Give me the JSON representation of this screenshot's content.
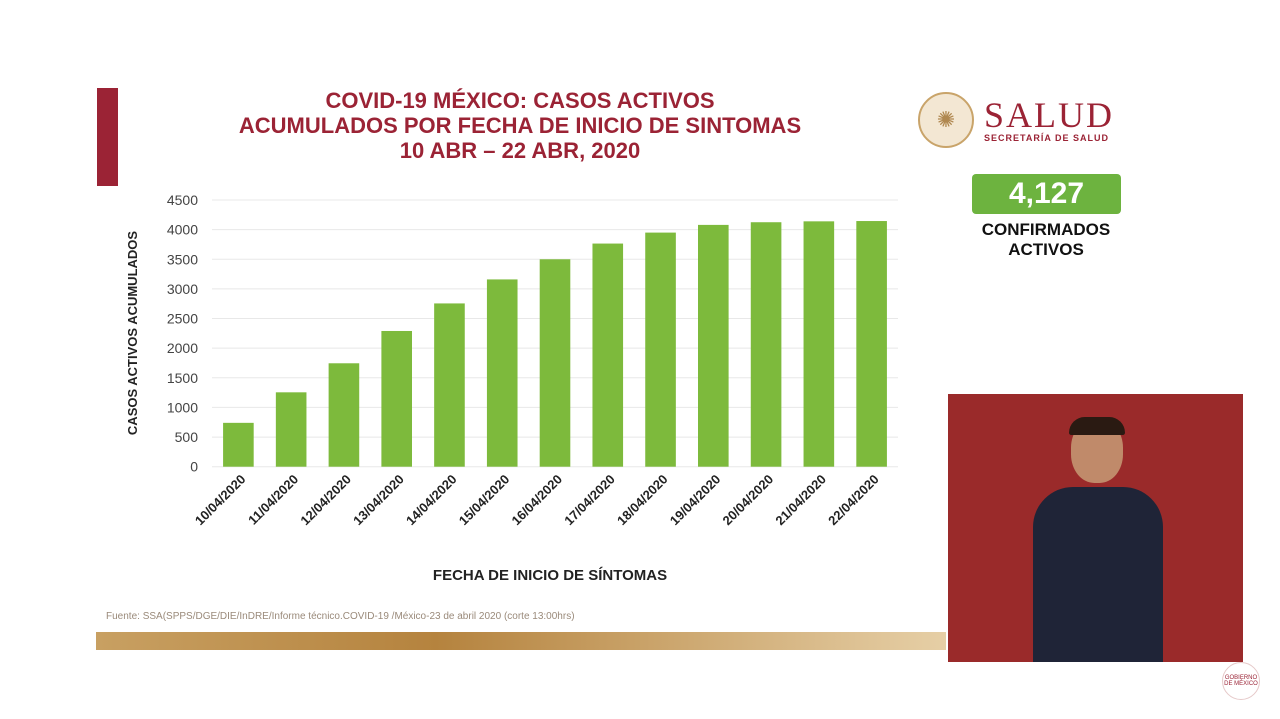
{
  "header": {
    "title_lines": [
      "COVID-19 MÉXICO: CASOS ACTIVOS",
      "ACUMULADOS POR FECHA DE INICIO DE SINTOMAS",
      "10 ABR – 22 ABR, 2020"
    ]
  },
  "logo": {
    "name": "SALUD",
    "subtitle": "SECRETARÍA DE SALUD"
  },
  "badge": {
    "value": "4,127",
    "label_lines": [
      "CONFIRMADOS",
      "ACTIVOS"
    ],
    "color": "#6db33f"
  },
  "source": "Fuente: SSA(SPPS/DGE/DIE/InDRE/Informe técnico.COVID-19 /México-23 de abril 2020 (corte 13:00hrs)",
  "watermark": "GOBIERNO DE MÉXICO",
  "chart_data": {
    "type": "bar",
    "title": "COVID-19 MÉXICO: CASOS ACTIVOS ACUMULADOS POR FECHA DE INICIO DE SINTOMAS 10 ABR – 22 ABR, 2020",
    "xlabel": "FECHA DE INICIO DE SÍNTOMAS",
    "ylabel": "CASOS ACTIVOS ACUMULADOS",
    "categories": [
      "10/04/2020",
      "11/04/2020",
      "12/04/2020",
      "13/04/2020",
      "14/04/2020",
      "15/04/2020",
      "16/04/2020",
      "17/04/2020",
      "18/04/2020",
      "19/04/2020",
      "20/04/2020",
      "21/04/2020",
      "22/04/2020"
    ],
    "values": [
      740,
      1255,
      1745,
      2290,
      2755,
      3160,
      3500,
      3765,
      3950,
      4080,
      4125,
      4140,
      4145
    ],
    "ylim": [
      0,
      4500
    ],
    "yticks": [
      0,
      500,
      1000,
      1500,
      2000,
      2500,
      3000,
      3500,
      4000,
      4500
    ],
    "grid": true,
    "bar_color": "#7dba3c"
  }
}
